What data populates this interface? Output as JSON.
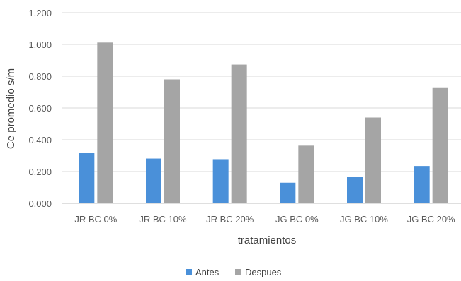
{
  "chart_data": {
    "type": "bar",
    "title": "",
    "xlabel": "tratamientos",
    "ylabel": "Ce promedio s/m",
    "ylim": [
      0,
      1.2
    ],
    "yticks": [
      "0.000",
      "0.200",
      "0.400",
      "0.600",
      "0.800",
      "1.000",
      "1.200"
    ],
    "categories": [
      "JR BC 0%",
      "JR BC 10%",
      "JR BC 20%",
      "JG BC 0%",
      "JG BC 10%",
      "JG BC 20%"
    ],
    "series": [
      {
        "name": "Antes",
        "color": "#4a90d9",
        "values": [
          0.318,
          0.282,
          0.278,
          0.13,
          0.168,
          0.235
        ]
      },
      {
        "name": "Despues",
        "color": "#a5a5a5",
        "values": [
          1.012,
          0.78,
          0.873,
          0.363,
          0.54,
          0.73
        ]
      }
    ],
    "grid": true,
    "legend_position": "bottom"
  }
}
